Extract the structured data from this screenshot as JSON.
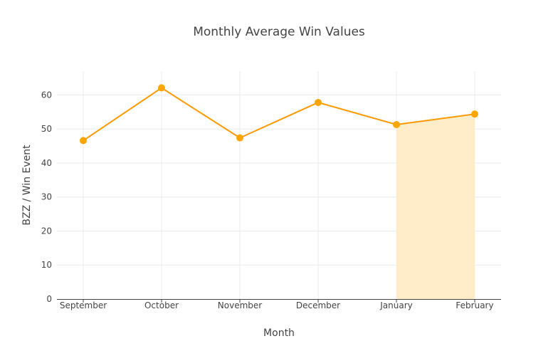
{
  "chart_data": {
    "type": "line",
    "title": "Monthly Average Win Values",
    "xlabel": "Month",
    "ylabel": "BZZ / Win Event",
    "categories": [
      "September",
      "October",
      "November",
      "December",
      "January",
      "February"
    ],
    "values": [
      46.6,
      62.1,
      47.4,
      57.8,
      51.3,
      54.4
    ],
    "ylim": [
      0,
      67
    ],
    "yticks": [
      0,
      10,
      20,
      30,
      40,
      50,
      60
    ],
    "grid": true,
    "shaded_region": {
      "from": "January",
      "to": "February",
      "fill": "to-zero"
    },
    "colors": {
      "line": "#ff9900",
      "marker": "#ffa500",
      "fill": "#ffecc8",
      "ylabel": "#5c2a3e"
    }
  }
}
